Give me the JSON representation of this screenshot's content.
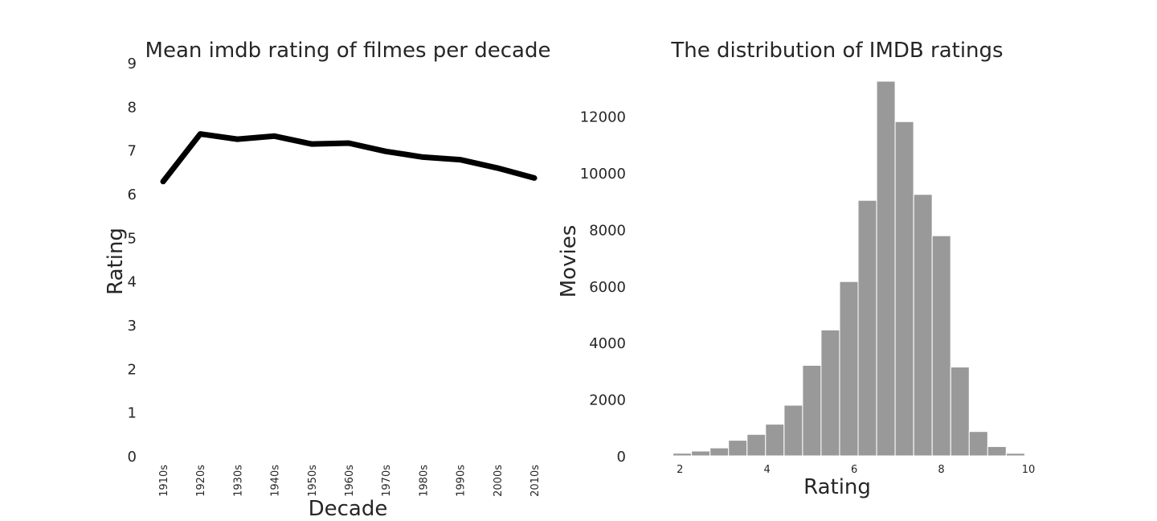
{
  "colors": {
    "line": "#000000",
    "bar_fill": "#999999",
    "bar_stroke": "#ffffff",
    "text": "#262626"
  },
  "chart_data": [
    {
      "type": "line",
      "title": "Mean imdb rating of filmes per decade",
      "xlabel": "Decade",
      "ylabel": "Rating",
      "categories": [
        "1910s",
        "1920s",
        "1930s",
        "1940s",
        "1950s",
        "1960s",
        "1970s",
        "1980s",
        "1990s",
        "2000s",
        "2010s"
      ],
      "values": [
        6.28,
        7.37,
        7.25,
        7.32,
        7.14,
        7.16,
        6.97,
        6.84,
        6.78,
        6.59,
        6.36
      ],
      "yticks": [
        "0",
        "1",
        "2",
        "3",
        "4",
        "5",
        "6",
        "7",
        "8",
        "9"
      ],
      "ylim": [
        0,
        9
      ],
      "grid": false
    },
    {
      "type": "bar",
      "title": "The distribution of IMDB ratings",
      "xlabel": "Rating",
      "ylabel": "Movies",
      "bin_edges": [
        1.0,
        1.425,
        1.85,
        2.275,
        2.7,
        3.125,
        3.55,
        3.975,
        4.4,
        4.825,
        5.25,
        5.675,
        6.1,
        6.525,
        6.95,
        7.375,
        7.8,
        8.225,
        8.65,
        9.075,
        9.5,
        9.925
      ],
      "values": [
        5,
        15,
        95,
        170,
        280,
        550,
        760,
        1120,
        1790,
        3200,
        4450,
        6160,
        9030,
        13240,
        11810,
        9240,
        7780,
        3140,
        860,
        330,
        90
      ],
      "xticks": [
        "2",
        "4",
        "6",
        "8",
        "10"
      ],
      "xtick_values": [
        2,
        4,
        6,
        8,
        10
      ],
      "yticks": [
        "0",
        "2000",
        "4000",
        "6000",
        "8000",
        "10000",
        "12000"
      ],
      "ytick_values": [
        0,
        2000,
        4000,
        6000,
        8000,
        10000,
        12000
      ],
      "xlim": [
        1.0,
        10.0
      ],
      "ylim": [
        0,
        13240
      ],
      "grid": false
    }
  ]
}
